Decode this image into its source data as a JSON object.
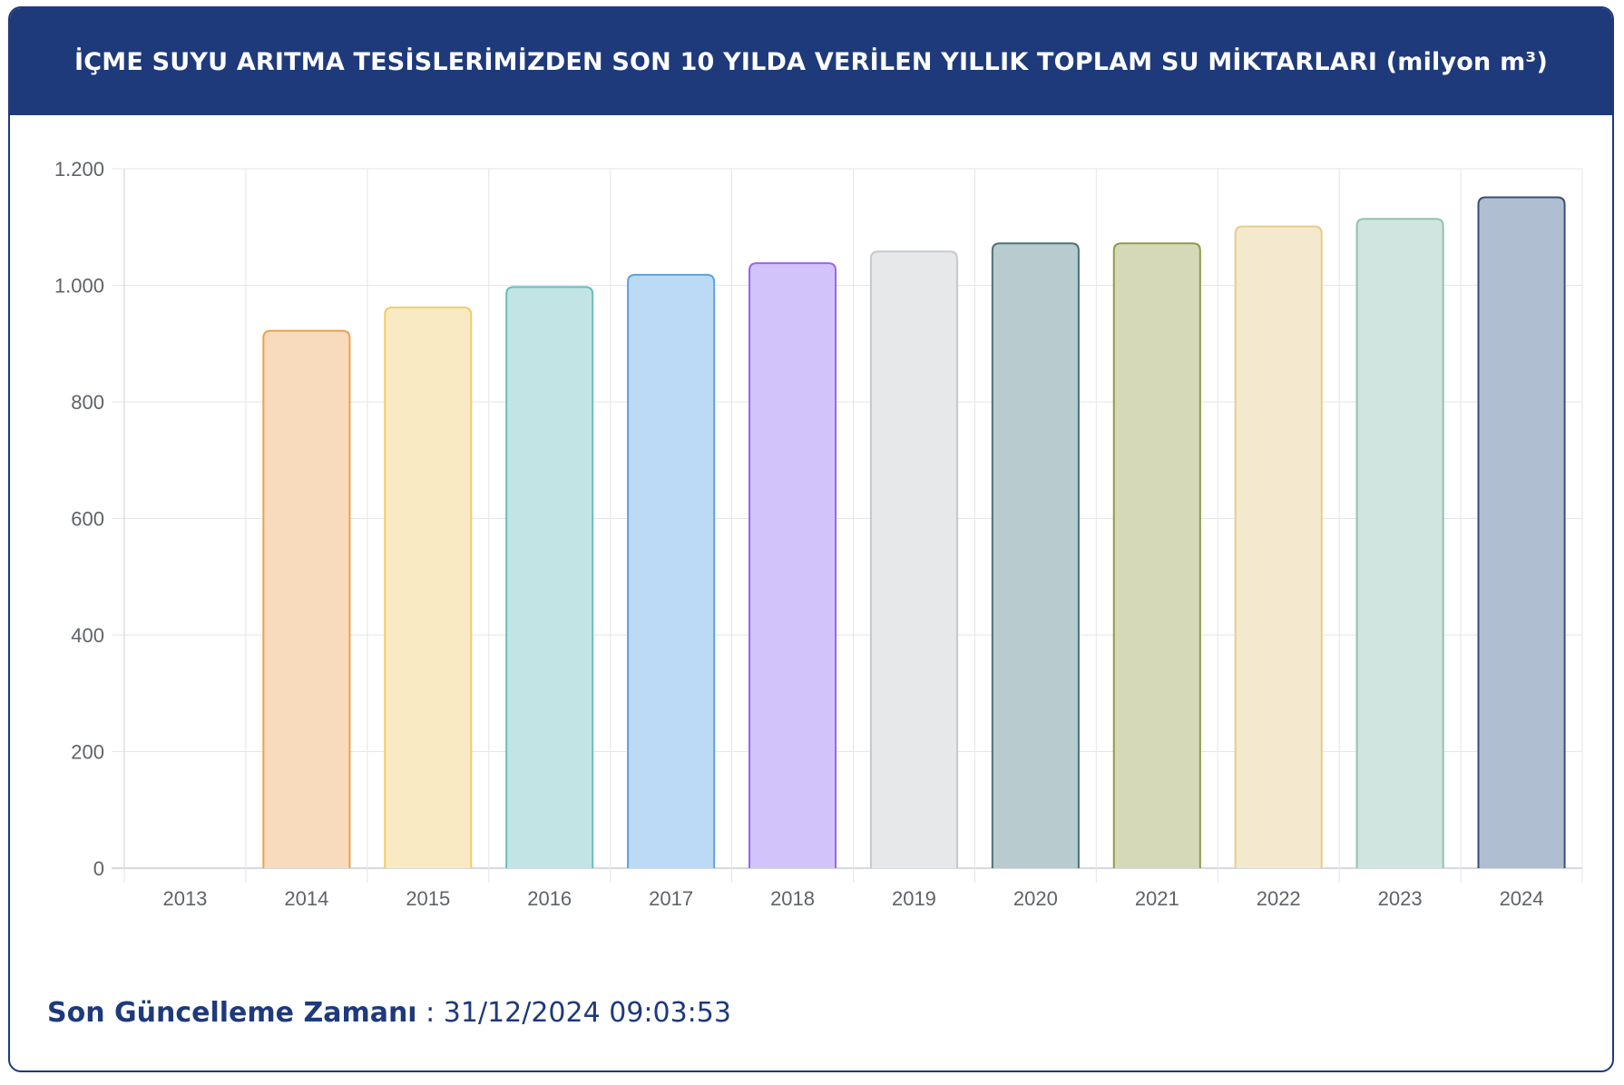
{
  "header": {
    "title": "İÇME SUYU ARITMA TESİSLERİMİZDEN SON 10 YILDA VERİLEN YILLIK TOPLAM SU MİKTARLARI (milyon m³)"
  },
  "footer": {
    "label": "Son Güncelleme Zamanı",
    "separator": " : ",
    "value": "31/12/2024 09:03:53"
  },
  "chart_data": {
    "type": "bar",
    "categories": [
      "2013",
      "2014",
      "2015",
      "2016",
      "2017",
      "2018",
      "2019",
      "2020",
      "2021",
      "2022",
      "2023",
      "2024"
    ],
    "values": [
      0,
      922,
      962,
      997,
      1018,
      1038,
      1058,
      1072,
      1072,
      1101,
      1114,
      1151
    ],
    "ylim": [
      0,
      1200
    ],
    "yticks": [
      0,
      200,
      400,
      600,
      800,
      1000,
      1200
    ],
    "ytick_labels": [
      "0",
      "200",
      "400",
      "600",
      "800",
      "1.000",
      "1.200"
    ],
    "grid": true,
    "bar_colors": [
      {
        "fill": "#ffffff",
        "stroke": "#ffffff"
      },
      {
        "fill": "#f8dbbd",
        "stroke": "#e9a24f"
      },
      {
        "fill": "#faeac3",
        "stroke": "#f2cd66"
      },
      {
        "fill": "#c3e4e5",
        "stroke": "#6bbcbc"
      },
      {
        "fill": "#bcdaf5",
        "stroke": "#5fa2e0"
      },
      {
        "fill": "#d3c3fb",
        "stroke": "#9666f0"
      },
      {
        "fill": "#e7e8ea",
        "stroke": "#c6c8cc"
      },
      {
        "fill": "#b8cbce",
        "stroke": "#4c7378"
      },
      {
        "fill": "#d6d9b8",
        "stroke": "#909a4d"
      },
      {
        "fill": "#f4e9cf",
        "stroke": "#e6cd88"
      },
      {
        "fill": "#d0e5df",
        "stroke": "#93c0b1"
      },
      {
        "fill": "#b0bed1",
        "stroke": "#3a4f75"
      }
    ]
  }
}
